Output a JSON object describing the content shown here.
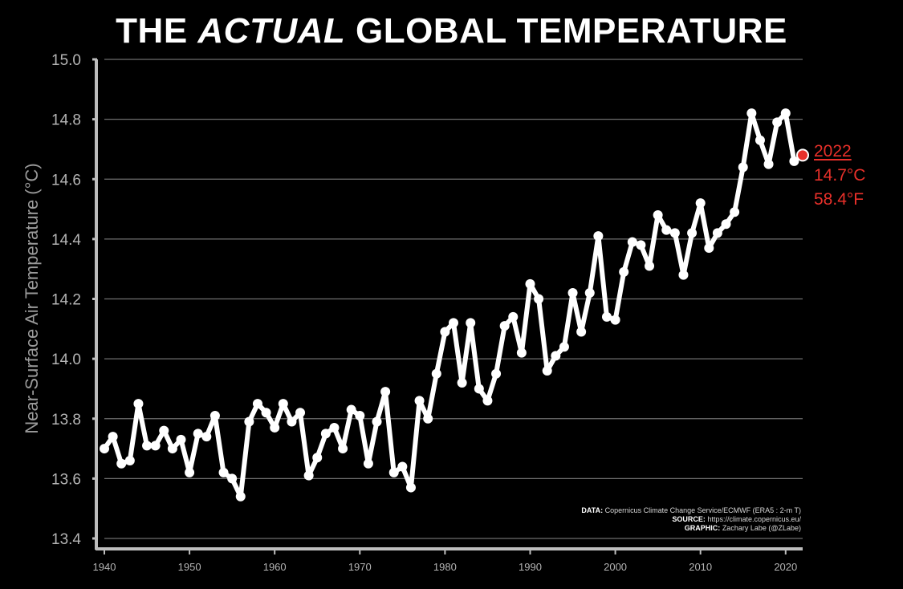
{
  "title": {
    "pre": "THE ",
    "em": "ACTUAL",
    "post": " GLOBAL TEMPERATURE"
  },
  "colors": {
    "background": "#000000",
    "line": "#ffffff",
    "grid": "#6e6e6e",
    "axis": "#bdbdbd",
    "highlight": "#e8302a"
  },
  "annotation": {
    "year": "2022",
    "celsius": "14.7°C",
    "fahrenheit": "58.4°F"
  },
  "credits": {
    "data_label": "DATA:",
    "data_text": "Copernicus Climate Change Service/ECMWF (ERA5 : 2-m T)",
    "source_label": "SOURCE:",
    "source_text": "https://climate.copernicus.eu/",
    "graphic_label": "GRAPHIC:",
    "graphic_text": "Zachary Labe (@ZLabe)"
  },
  "chart_data": {
    "type": "line",
    "ylabel": "Near-Surface Air Temperature (°C)",
    "xlabel": "",
    "xlim": [
      1940,
      2022
    ],
    "ylim": [
      13.4,
      15.0
    ],
    "xticks": [
      1940,
      1950,
      1960,
      1970,
      1980,
      1990,
      2000,
      2010,
      2020
    ],
    "yticks": [
      13.4,
      13.6,
      13.8,
      14.0,
      14.2,
      14.4,
      14.6,
      14.8,
      15.0
    ],
    "grid": "horizontal",
    "x": [
      1940,
      1941,
      1942,
      1943,
      1944,
      1945,
      1946,
      1947,
      1948,
      1949,
      1950,
      1951,
      1952,
      1953,
      1954,
      1955,
      1956,
      1957,
      1958,
      1959,
      1960,
      1961,
      1962,
      1963,
      1964,
      1965,
      1966,
      1967,
      1968,
      1969,
      1970,
      1971,
      1972,
      1973,
      1974,
      1975,
      1976,
      1977,
      1978,
      1979,
      1980,
      1981,
      1982,
      1983,
      1984,
      1985,
      1986,
      1987,
      1988,
      1989,
      1990,
      1991,
      1992,
      1993,
      1994,
      1995,
      1996,
      1997,
      1998,
      1999,
      2000,
      2001,
      2002,
      2003,
      2004,
      2005,
      2006,
      2007,
      2008,
      2009,
      2010,
      2011,
      2012,
      2013,
      2014,
      2015,
      2016,
      2017,
      2018,
      2019,
      2020,
      2021
    ],
    "values": [
      13.7,
      13.74,
      13.65,
      13.66,
      13.85,
      13.71,
      13.71,
      13.76,
      13.7,
      13.73,
      13.62,
      13.75,
      13.74,
      13.81,
      13.62,
      13.6,
      13.54,
      13.79,
      13.85,
      13.82,
      13.77,
      13.85,
      13.79,
      13.82,
      13.61,
      13.67,
      13.75,
      13.77,
      13.7,
      13.83,
      13.81,
      13.65,
      13.79,
      13.89,
      13.62,
      13.64,
      13.57,
      13.86,
      13.8,
      13.95,
      14.09,
      14.12,
      13.92,
      14.12,
      13.9,
      13.86,
      13.95,
      14.11,
      14.14,
      14.02,
      14.25,
      14.2,
      13.96,
      14.01,
      14.04,
      14.22,
      14.09,
      14.22,
      14.41,
      14.14,
      14.13,
      14.29,
      14.39,
      14.38,
      14.31,
      14.48,
      14.43,
      14.42,
      14.28,
      14.42,
      14.52,
      14.37,
      14.42,
      14.45,
      14.49,
      14.64,
      14.82,
      14.73,
      14.65,
      14.79,
      14.82,
      14.66
    ],
    "highlight": {
      "x": 2022,
      "value": 14.68
    }
  }
}
